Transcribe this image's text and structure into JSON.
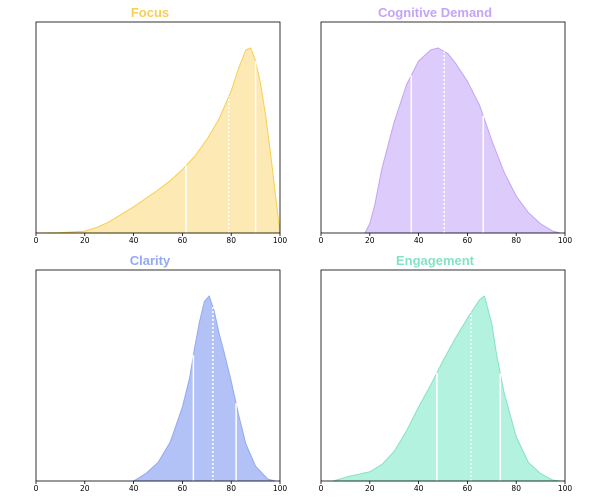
{
  "chart_data": [
    {
      "type": "area",
      "title": "Focus",
      "color": "#f7cf55",
      "fill": "#fde9b4",
      "xlim": [
        0,
        100
      ],
      "xticks": [
        0,
        20,
        40,
        60,
        80,
        100
      ],
      "x": [
        0,
        10,
        20,
        25,
        30,
        40,
        50,
        55,
        60,
        65,
        70,
        75,
        80,
        83,
        86,
        88,
        90,
        92,
        94,
        96,
        98,
        100
      ],
      "density": [
        0.0,
        0.002,
        0.01,
        0.03,
        0.06,
        0.14,
        0.23,
        0.28,
        0.34,
        0.41,
        0.5,
        0.61,
        0.76,
        0.88,
        0.98,
        0.99,
        0.92,
        0.8,
        0.64,
        0.44,
        0.22,
        0.0
      ],
      "quartiles": [
        61.5,
        79,
        90
      ],
      "median": 79
    },
    {
      "type": "area",
      "title": "Cognitive Demand",
      "color": "#c3a5f3",
      "fill": "#dccbfb",
      "xlim": [
        0,
        100
      ],
      "xticks": [
        0,
        20,
        40,
        60,
        80,
        100
      ],
      "x": [
        18,
        20,
        22,
        25,
        30,
        35,
        40,
        45,
        48,
        52,
        55,
        60,
        65,
        70,
        75,
        80,
        85,
        90,
        95,
        98
      ],
      "density": [
        0.0,
        0.05,
        0.15,
        0.35,
        0.6,
        0.8,
        0.93,
        0.99,
        1.0,
        0.97,
        0.92,
        0.82,
        0.69,
        0.5,
        0.33,
        0.2,
        0.11,
        0.05,
        0.01,
        0.0
      ],
      "quartiles": [
        37,
        50.5,
        66.5
      ],
      "median": 50.5
    },
    {
      "type": "area",
      "title": "Clarity",
      "color": "#94aaf0",
      "fill": "#b2c1f6",
      "xlim": [
        0,
        100
      ],
      "xticks": [
        0,
        20,
        40,
        60,
        80,
        100
      ],
      "x": [
        40,
        45,
        50,
        55,
        60,
        63,
        65,
        67,
        69,
        71,
        73,
        75,
        77,
        80,
        83,
        86,
        90,
        95,
        98
      ],
      "density": [
        0.0,
        0.04,
        0.1,
        0.21,
        0.4,
        0.56,
        0.72,
        0.86,
        0.97,
        1.0,
        0.92,
        0.8,
        0.7,
        0.54,
        0.36,
        0.2,
        0.08,
        0.01,
        0.0
      ],
      "quartiles": [
        64.5,
        72.5,
        82
      ],
      "median": 72.5
    },
    {
      "type": "area",
      "title": "Engagement",
      "color": "#86e2c6",
      "fill": "#b2f2de",
      "xlim": [
        0,
        100
      ],
      "xticks": [
        0,
        20,
        40,
        60,
        80,
        100
      ],
      "x": [
        5,
        10,
        20,
        25,
        30,
        35,
        40,
        45,
        50,
        55,
        60,
        63,
        65,
        67,
        70,
        72,
        75,
        80,
        85,
        90,
        95,
        98
      ],
      "density": [
        0.0,
        0.02,
        0.05,
        0.09,
        0.16,
        0.27,
        0.4,
        0.52,
        0.65,
        0.77,
        0.88,
        0.94,
        0.98,
        1.0,
        0.85,
        0.68,
        0.48,
        0.24,
        0.1,
        0.04,
        0.005,
        0.0
      ],
      "quartiles": [
        47.5,
        61.5,
        73.5
      ],
      "median": 61.5
    }
  ]
}
